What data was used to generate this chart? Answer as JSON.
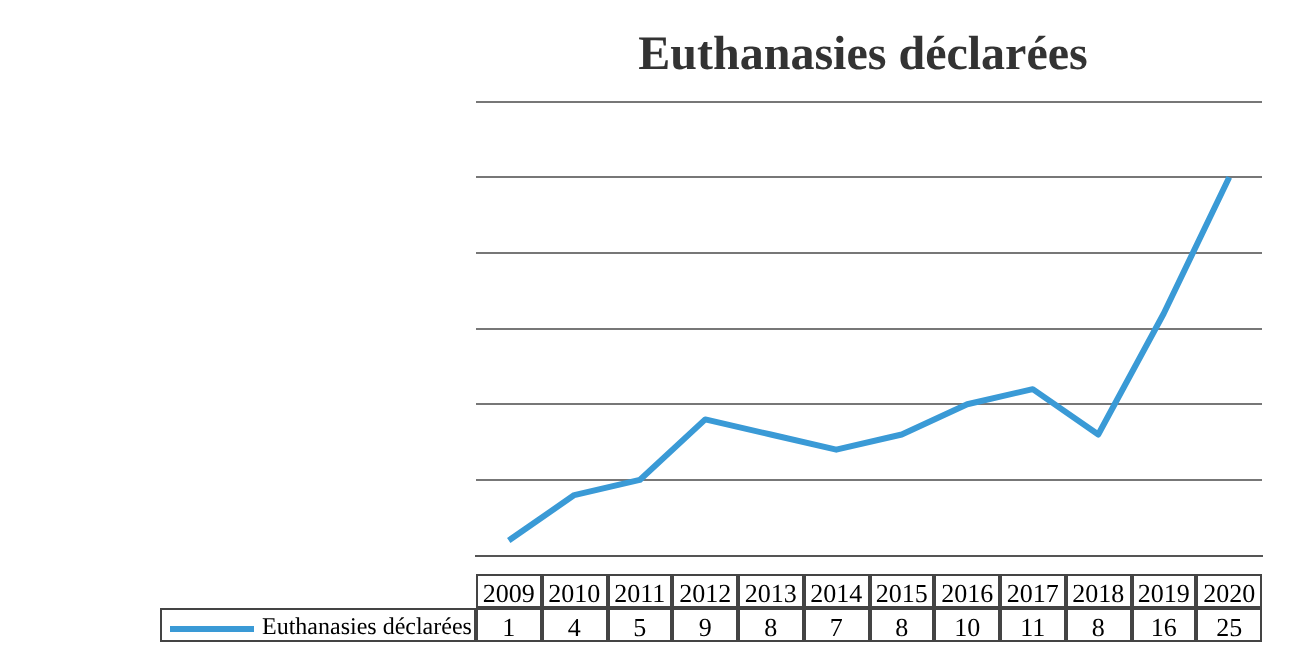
{
  "chart_data": {
    "type": "line",
    "title": "Euthanasies déclarées",
    "categories": [
      "2009",
      "2010",
      "2011",
      "2012",
      "2013",
      "2014",
      "2015",
      "2016",
      "2017",
      "2018",
      "2019",
      "2020"
    ],
    "series": [
      {
        "name": "Euthanasies déclarées",
        "color": "#3a9ad6",
        "values": [
          1,
          4,
          5,
          9,
          8,
          7,
          8,
          10,
          11,
          8,
          16,
          25
        ]
      }
    ],
    "ylim": [
      0,
      30
    ],
    "yticks": [
      {
        "value": 0,
        "label": null
      },
      {
        "value": 5,
        "label": null
      },
      {
        "value": 10,
        "label": null
      },
      {
        "value": 15,
        "label": null
      },
      {
        "value": 20,
        "label": null
      },
      {
        "value": 25,
        "label": null
      },
      {
        "value": 30,
        "label": null
      }
    ],
    "grid": "y",
    "legend": "bottom",
    "data_labels": true,
    "marker": "none",
    "line_style": "solid",
    "tick_labels": "y"
  }
}
